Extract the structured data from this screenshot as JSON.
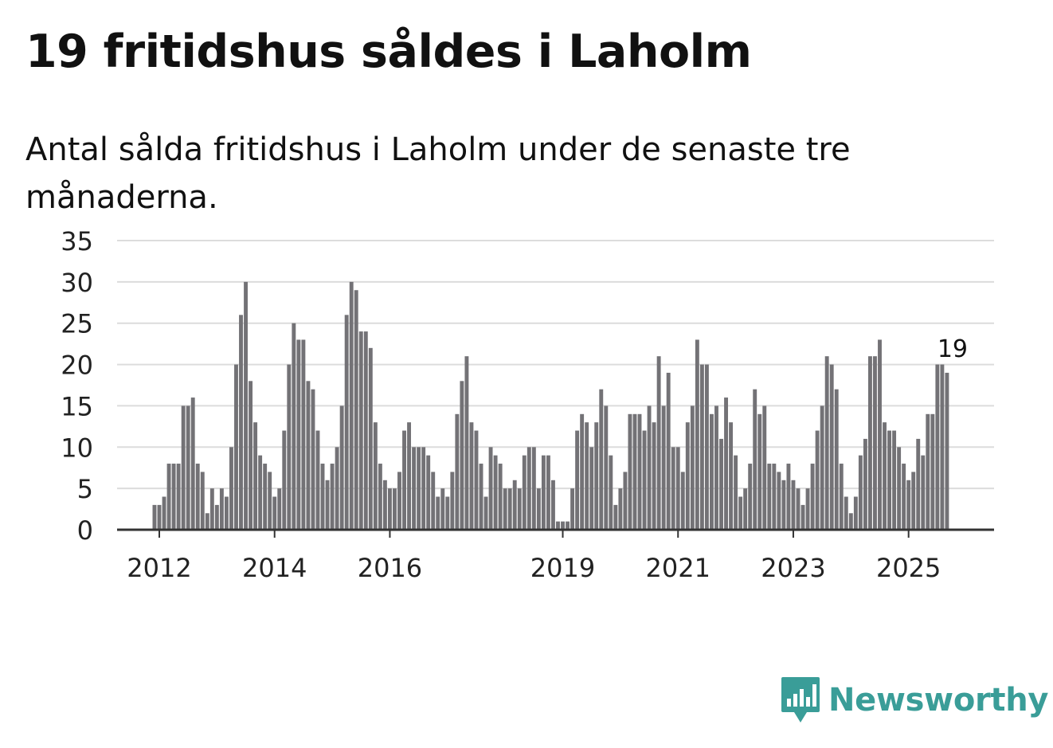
{
  "header": {
    "title": "19 fritidshus såldes i Laholm",
    "subtitle": "Antal sålda fritidshus i Laholm under de senaste tre månaderna."
  },
  "brand": {
    "name": "Newsworthy",
    "icon": "bar-chart-speech-bubble-icon"
  },
  "colors": {
    "bar": "#737276",
    "highlight": "#1aa09a",
    "grid": "#dcdcdc",
    "axis": "#333333",
    "text": "#222222"
  },
  "chart_data": {
    "type": "bar",
    "title": "19 fritidshus såldes i Laholm",
    "subtitle": "Antal sålda fritidshus i Laholm under de senaste tre månaderna.",
    "xlabel": "",
    "ylabel": "",
    "ylim": [
      0,
      35
    ],
    "yticks": [
      0,
      5,
      10,
      15,
      20,
      25,
      30,
      35
    ],
    "grid": true,
    "start": "2011-12",
    "frequency": "monthly",
    "xtick_labels": [
      {
        "label": "2012",
        "index": 1
      },
      {
        "label": "2014",
        "index": 25
      },
      {
        "label": "2016",
        "index": 49
      },
      {
        "label": "2019",
        "index": 85
      },
      {
        "label": "2021",
        "index": 109
      },
      {
        "label": "2023",
        "index": 133
      },
      {
        "label": "2025",
        "index": 157
      }
    ],
    "highlight": {
      "index": 166,
      "label": "19"
    },
    "values": [
      3,
      3,
      4,
      8,
      8,
      8,
      15,
      15,
      16,
      8,
      7,
      2,
      5,
      3,
      5,
      4,
      10,
      20,
      26,
      30,
      18,
      13,
      9,
      8,
      7,
      4,
      5,
      12,
      20,
      25,
      23,
      23,
      18,
      17,
      12,
      8,
      6,
      8,
      10,
      15,
      26,
      30,
      29,
      24,
      24,
      22,
      13,
      8,
      6,
      5,
      5,
      7,
      12,
      13,
      10,
      10,
      10,
      9,
      7,
      4,
      5,
      4,
      7,
      14,
      18,
      21,
      13,
      12,
      8,
      4,
      10,
      9,
      8,
      5,
      5,
      6,
      5,
      9,
      10,
      10,
      5,
      9,
      9,
      6,
      1,
      1,
      1,
      5,
      12,
      14,
      13,
      10,
      13,
      17,
      15,
      9,
      3,
      5,
      7,
      14,
      14,
      14,
      12,
      15,
      13,
      21,
      15,
      19,
      10,
      10,
      7,
      13,
      15,
      23,
      20,
      20,
      14,
      15,
      11,
      16,
      13,
      9,
      4,
      5,
      8,
      17,
      14,
      15,
      8,
      8,
      7,
      6,
      8,
      6,
      5,
      3,
      5,
      8,
      12,
      15,
      21,
      20,
      17,
      8,
      4,
      2,
      4,
      9,
      11,
      21,
      21,
      23,
      13,
      12,
      12,
      10,
      8,
      6,
      7,
      11,
      9,
      14,
      14,
      20,
      20,
      19
    ]
  }
}
